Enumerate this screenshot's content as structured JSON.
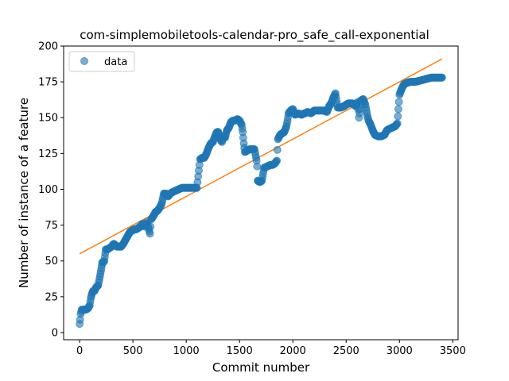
{
  "chart_data": {
    "type": "scatter",
    "title": "com-simplemobiletools-calendar-pro_safe_call-exponential",
    "xlabel": "Commit number",
    "ylabel": "Number of instance of a feature",
    "xlim": [
      -150,
      3550
    ],
    "ylim": [
      -5,
      200
    ],
    "xticks": [
      0,
      500,
      1000,
      1500,
      2000,
      2500,
      3000,
      3500
    ],
    "yticks": [
      0,
      25,
      50,
      75,
      100,
      125,
      150,
      175,
      200
    ],
    "grid": false,
    "legend": {
      "placement": "top-left",
      "entries": [
        "data"
      ]
    },
    "colors": {
      "data": "#1f77b4",
      "fit": "#ff7f0e"
    },
    "series": [
      {
        "name": "data",
        "kind": "scatter",
        "points": [
          [
            0,
            6
          ],
          [
            5,
            9
          ],
          [
            10,
            13
          ],
          [
            20,
            16
          ],
          [
            40,
            16
          ],
          [
            60,
            16
          ],
          [
            80,
            17
          ],
          [
            95,
            19
          ],
          [
            105,
            24
          ],
          [
            115,
            27
          ],
          [
            125,
            29
          ],
          [
            140,
            29
          ],
          [
            150,
            31
          ],
          [
            160,
            32
          ],
          [
            175,
            33
          ],
          [
            185,
            37
          ],
          [
            195,
            41
          ],
          [
            205,
            45
          ],
          [
            212,
            49
          ],
          [
            222,
            49
          ],
          [
            232,
            50
          ],
          [
            245,
            58
          ],
          [
            260,
            58
          ],
          [
            280,
            59
          ],
          [
            300,
            60
          ],
          [
            320,
            62
          ],
          [
            335,
            61
          ],
          [
            350,
            60
          ],
          [
            370,
            60
          ],
          [
            390,
            60
          ],
          [
            410,
            62
          ],
          [
            425,
            64
          ],
          [
            440,
            66
          ],
          [
            455,
            68
          ],
          [
            470,
            70
          ],
          [
            490,
            71
          ],
          [
            510,
            72
          ],
          [
            530,
            72
          ],
          [
            550,
            73
          ],
          [
            570,
            74
          ],
          [
            590,
            76
          ],
          [
            610,
            74
          ],
          [
            630,
            77
          ],
          [
            650,
            72
          ],
          [
            660,
            69
          ],
          [
            670,
            79
          ],
          [
            690,
            81
          ],
          [
            710,
            84
          ],
          [
            730,
            85
          ],
          [
            750,
            87
          ],
          [
            770,
            90
          ],
          [
            790,
            97
          ],
          [
            810,
            97
          ],
          [
            830,
            95
          ],
          [
            850,
            97
          ],
          [
            870,
            98
          ],
          [
            900,
            99
          ],
          [
            930,
            100
          ],
          [
            960,
            101
          ],
          [
            990,
            101
          ],
          [
            1030,
            101
          ],
          [
            1060,
            101
          ],
          [
            1100,
            101
          ],
          [
            1130,
            121
          ],
          [
            1150,
            122
          ],
          [
            1170,
            122
          ],
          [
            1190,
            125
          ],
          [
            1200,
            127
          ],
          [
            1210,
            129
          ],
          [
            1230,
            132
          ],
          [
            1250,
            133
          ],
          [
            1265,
            136
          ],
          [
            1280,
            139
          ],
          [
            1290,
            140
          ],
          [
            1300,
            140
          ],
          [
            1320,
            135
          ],
          [
            1335,
            133
          ],
          [
            1350,
            137
          ],
          [
            1365,
            136
          ],
          [
            1380,
            141
          ],
          [
            1400,
            143
          ],
          [
            1420,
            147
          ],
          [
            1440,
            148
          ],
          [
            1460,
            148
          ],
          [
            1480,
            149
          ],
          [
            1500,
            148
          ],
          [
            1520,
            145
          ],
          [
            1530,
            140
          ],
          [
            1540,
            132
          ],
          [
            1550,
            126
          ],
          [
            1570,
            127
          ],
          [
            1600,
            128
          ],
          [
            1640,
            128
          ],
          [
            1660,
            120
          ],
          [
            1665,
            116
          ],
          [
            1670,
            106
          ],
          [
            1690,
            105
          ],
          [
            1710,
            106
          ],
          [
            1730,
            115
          ],
          [
            1760,
            116
          ],
          [
            1790,
            117
          ],
          [
            1810,
            117
          ],
          [
            1830,
            118
          ],
          [
            1850,
            120
          ],
          [
            1860,
            135
          ],
          [
            1880,
            138
          ],
          [
            1900,
            139
          ],
          [
            1920,
            140
          ],
          [
            1940,
            144
          ],
          [
            1950,
            148
          ],
          [
            1960,
            153
          ],
          [
            1980,
            155
          ],
          [
            2000,
            156
          ],
          [
            2020,
            152
          ],
          [
            2050,
            153
          ],
          [
            2080,
            152
          ],
          [
            2110,
            153
          ],
          [
            2140,
            154
          ],
          [
            2170,
            153
          ],
          [
            2200,
            155
          ],
          [
            2230,
            155
          ],
          [
            2260,
            155
          ],
          [
            2290,
            155
          ],
          [
            2320,
            154
          ],
          [
            2340,
            158
          ],
          [
            2360,
            160
          ],
          [
            2380,
            164
          ],
          [
            2400,
            167
          ],
          [
            2420,
            157
          ],
          [
            2450,
            157
          ],
          [
            2480,
            158
          ],
          [
            2500,
            159
          ],
          [
            2520,
            160
          ],
          [
            2560,
            160
          ],
          [
            2590,
            158
          ],
          [
            2610,
            161
          ],
          [
            2620,
            150
          ],
          [
            2640,
            162
          ],
          [
            2660,
            163
          ],
          [
            2680,
            159
          ],
          [
            2700,
            151
          ],
          [
            2710,
            148
          ],
          [
            2730,
            145
          ],
          [
            2750,
            141
          ],
          [
            2770,
            138
          ],
          [
            2800,
            137
          ],
          [
            2830,
            137
          ],
          [
            2860,
            138
          ],
          [
            2880,
            141
          ],
          [
            2900,
            142
          ],
          [
            2930,
            143
          ],
          [
            2960,
            144
          ],
          [
            2980,
            146
          ],
          [
            3000,
            166
          ],
          [
            3020,
            170
          ],
          [
            3040,
            173
          ],
          [
            3060,
            174
          ],
          [
            3100,
            175
          ],
          [
            3150,
            175
          ],
          [
            3200,
            176
          ],
          [
            3250,
            177
          ],
          [
            3300,
            178
          ],
          [
            3350,
            178
          ],
          [
            3400,
            178
          ]
        ]
      },
      {
        "name": "fit",
        "kind": "line",
        "points": [
          [
            0,
            55
          ],
          [
            3400,
            191
          ]
        ]
      }
    ]
  }
}
